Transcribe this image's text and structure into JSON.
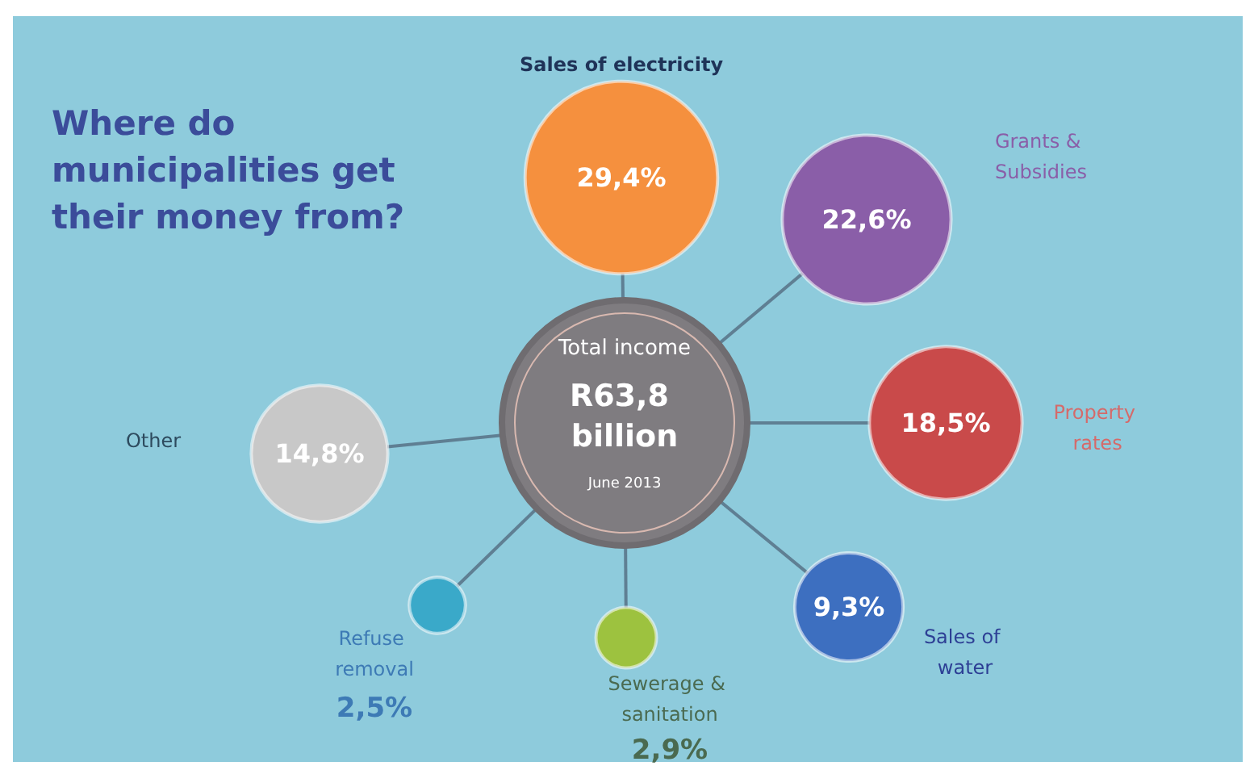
{
  "chart_data": {
    "type": "other",
    "title": "Where do municipalities get their money from?",
    "categories": [
      "Sales of electricity",
      "Grants & Subsidies",
      "Property rates",
      "Other",
      "Sales of water",
      "Sewerage & sanitation",
      "Refuse removal"
    ],
    "values": [
      29.4,
      22.6,
      18.5,
      14.8,
      9.3,
      2.9,
      2.5
    ],
    "value_labels": [
      "29,4%",
      "22,6%",
      "18,5%",
      "14,8%",
      "9,3%",
      "2,9%",
      "2,5%"
    ],
    "colors": [
      "#f5903e",
      "#8a5ea8",
      "#c94a4a",
      "#c8c8c8",
      "#3d6fc0",
      "#9dc23f",
      "#3aa9c9"
    ],
    "annotations": [
      "Total income",
      "R63,8 billion",
      "June 2013"
    ]
  }
}
